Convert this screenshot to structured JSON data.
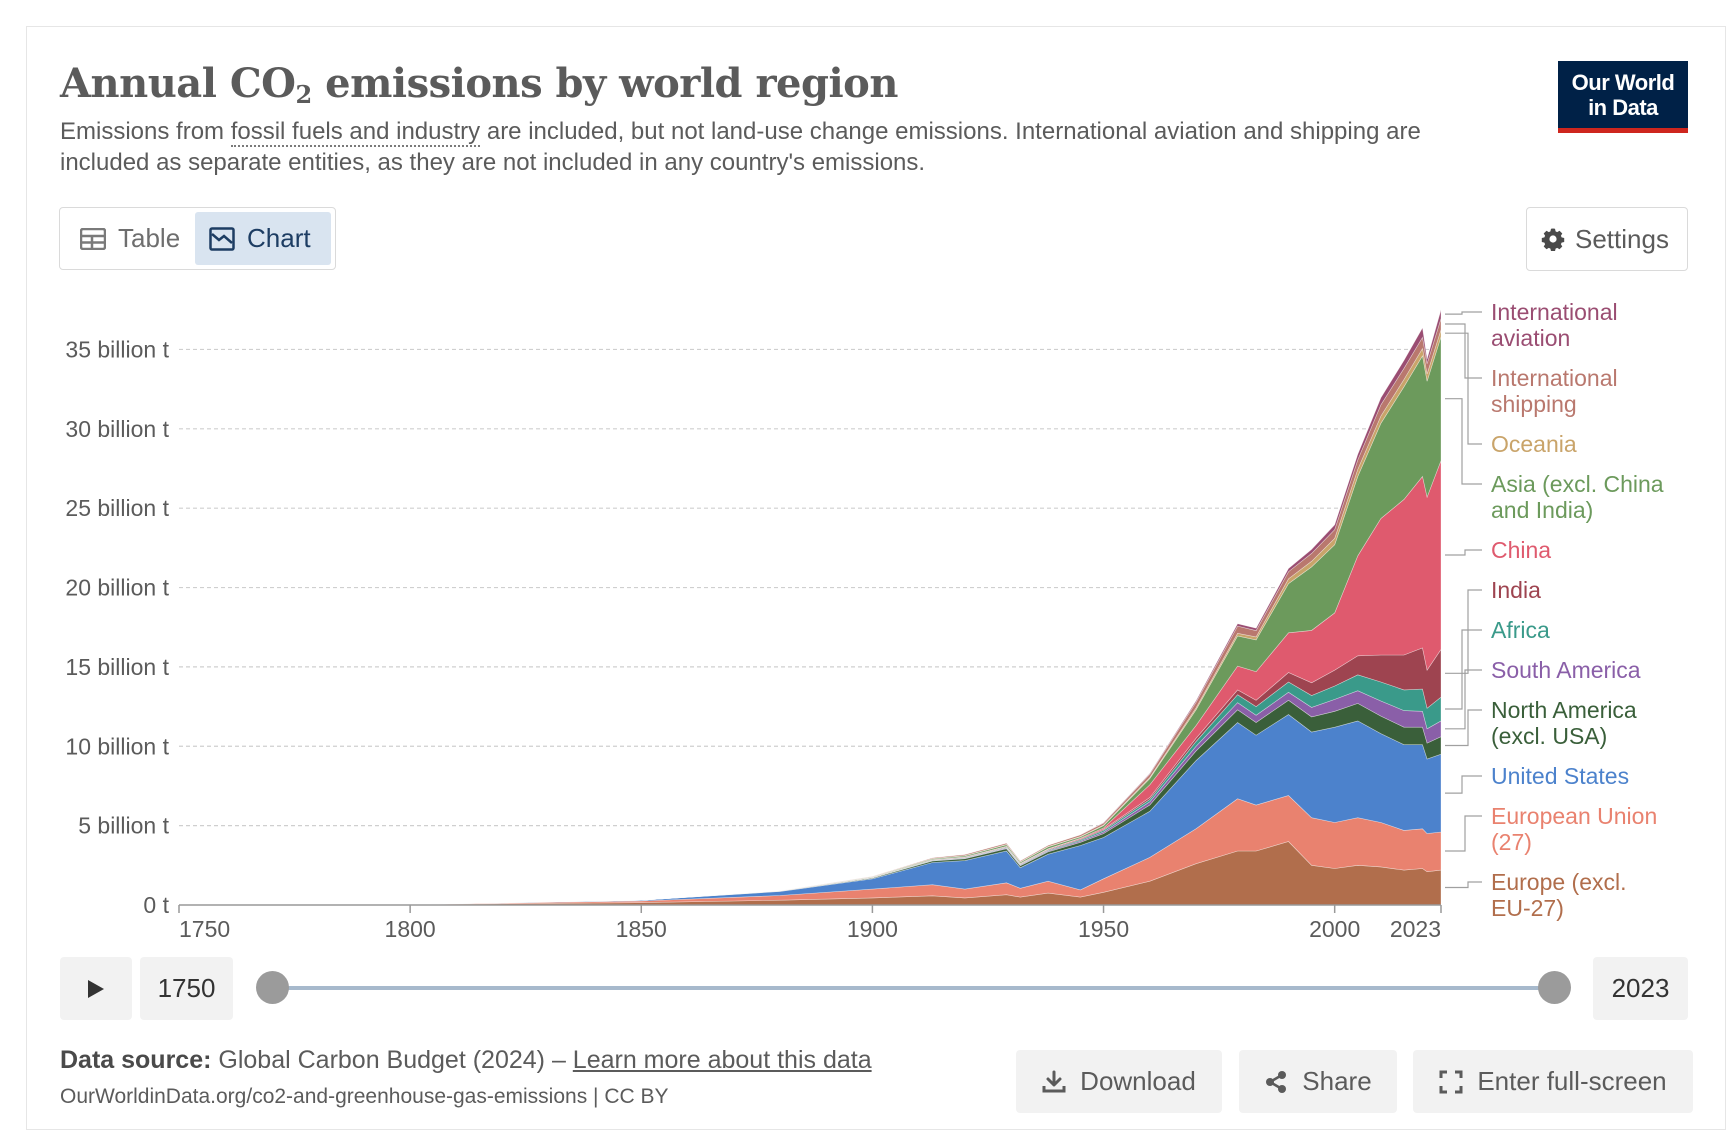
{
  "header": {
    "title_pre": "Annual CO",
    "title_sub": "2",
    "title_post": " emissions by world region",
    "subtitle_pre": "Emissions from ",
    "subtitle_link": "fossil fuels and industry",
    "subtitle_post": " are included, but not land-use change emissions. International aviation and shipping are included as separate entities, as they are not included in any country's emissions.",
    "logo_line1": "Our World",
    "logo_line2": "in Data"
  },
  "controls": {
    "table_label": "Table",
    "chart_label": "Chart",
    "settings_label": "Settings",
    "icons": {
      "table": "table-icon",
      "chart": "chart-icon",
      "settings": "gear-icon"
    }
  },
  "timeline": {
    "start_label": "1750",
    "end_label": "2023",
    "range": [
      1750,
      2023
    ],
    "play_icon": "play-icon"
  },
  "footer": {
    "source_label": "Data source:",
    "source_text": " Global Carbon Budget (2024) – ",
    "learn_more": "Learn more about this data",
    "url_text": "OurWorldinData.org/co2-and-greenhouse-gas-emissions | CC BY",
    "download_label": "Download",
    "share_label": "Share",
    "fullscreen_label": "Enter full-screen"
  },
  "chart_data": {
    "type": "area",
    "stacked": true,
    "grid": "horizontal dashed",
    "legend": "right (inline end labels)",
    "xlim": [
      1750,
      2023
    ],
    "ylim": [
      0,
      37.8
    ],
    "x_ticks": [
      {
        "value": 1750,
        "label": "1750"
      },
      {
        "value": 1800,
        "label": "1800"
      },
      {
        "value": 1850,
        "label": "1850"
      },
      {
        "value": 1900,
        "label": "1900"
      },
      {
        "value": 1950,
        "label": "1950"
      },
      {
        "value": 2000,
        "label": "2000"
      },
      {
        "value": 2023,
        "label": "2023"
      }
    ],
    "y_ticks": [
      {
        "value": 0,
        "label": "0 t"
      },
      {
        "value": 5,
        "label": "5 billion t"
      },
      {
        "value": 10,
        "label": "10 billion t"
      },
      {
        "value": 15,
        "label": "15 billion t"
      },
      {
        "value": 20,
        "label": "20 billion t"
      },
      {
        "value": 25,
        "label": "25 billion t"
      },
      {
        "value": 30,
        "label": "30 billion t"
      },
      {
        "value": 35,
        "label": "35 billion t"
      }
    ],
    "x": [
      1750,
      1800,
      1850,
      1880,
      1900,
      1913,
      1920,
      1929,
      1932,
      1938,
      1945,
      1950,
      1960,
      1970,
      1979,
      1983,
      1990,
      1995,
      2000,
      2005,
      2010,
      2015,
      2019,
      2020,
      2023
    ],
    "series": [
      {
        "name": "Europe (excl. EU-27)",
        "color": "#b16e4c",
        "label_lines": [
          "Europe (excl.",
          "EU-27)"
        ],
        "values": [
          0.01,
          0.03,
          0.15,
          0.3,
          0.45,
          0.58,
          0.45,
          0.65,
          0.5,
          0.75,
          0.5,
          0.8,
          1.5,
          2.6,
          3.4,
          3.4,
          4.0,
          2.5,
          2.3,
          2.5,
          2.4,
          2.2,
          2.3,
          2.1,
          2.2
        ]
      },
      {
        "name": "European Union (27)",
        "color": "#e9826f",
        "label_lines": [
          "European Union",
          "(27)"
        ],
        "values": [
          0.0,
          0.01,
          0.1,
          0.3,
          0.55,
          0.7,
          0.55,
          0.75,
          0.55,
          0.75,
          0.45,
          0.85,
          1.5,
          2.2,
          3.3,
          2.9,
          2.9,
          3.0,
          2.9,
          3.0,
          2.8,
          2.5,
          2.5,
          2.4,
          2.4
        ]
      },
      {
        "name": "United States",
        "color": "#4c82cc",
        "label_lines": [
          "United States"
        ],
        "values": [
          0.0,
          0.0,
          0.05,
          0.25,
          0.65,
          1.4,
          1.8,
          2.0,
          1.3,
          1.7,
          2.8,
          2.6,
          2.9,
          4.3,
          4.8,
          4.4,
          5.1,
          5.4,
          6.0,
          6.1,
          5.6,
          5.4,
          5.3,
          4.7,
          4.9
        ]
      },
      {
        "name": "North America (excl. USA)",
        "color": "#3a5f3a",
        "label_lines": [
          "North America",
          "(excl. USA)"
        ],
        "values": [
          0.0,
          0.0,
          0.0,
          0.02,
          0.05,
          0.1,
          0.12,
          0.15,
          0.12,
          0.15,
          0.2,
          0.25,
          0.4,
          0.6,
          0.8,
          0.8,
          0.9,
          0.95,
          1.0,
          1.1,
          1.1,
          1.1,
          1.1,
          1.0,
          1.1
        ]
      },
      {
        "name": "South America",
        "color": "#8a5fa8",
        "label_lines": [
          "South America"
        ],
        "values": [
          0.0,
          0.0,
          0.0,
          0.0,
          0.01,
          0.02,
          0.03,
          0.05,
          0.05,
          0.06,
          0.08,
          0.1,
          0.2,
          0.3,
          0.45,
          0.45,
          0.5,
          0.6,
          0.75,
          0.8,
          0.95,
          1.05,
          1.0,
          0.9,
          1.0
        ]
      },
      {
        "name": "Africa",
        "color": "#3a9a8a",
        "label_lines": [
          "Africa"
        ],
        "values": [
          0.0,
          0.0,
          0.0,
          0.0,
          0.01,
          0.02,
          0.03,
          0.04,
          0.04,
          0.05,
          0.07,
          0.1,
          0.15,
          0.3,
          0.5,
          0.55,
          0.65,
          0.75,
          0.85,
          1.0,
          1.2,
          1.3,
          1.4,
          1.3,
          1.5
        ]
      },
      {
        "name": "India",
        "color": "#9e4450",
        "label_lines": [
          "India"
        ],
        "values": [
          0.0,
          0.0,
          0.0,
          0.01,
          0.02,
          0.03,
          0.04,
          0.04,
          0.04,
          0.05,
          0.06,
          0.07,
          0.12,
          0.2,
          0.3,
          0.4,
          0.6,
          0.8,
          1.0,
          1.2,
          1.7,
          2.2,
          2.6,
          2.4,
          3.0
        ]
      },
      {
        "name": "China",
        "color": "#df5a6e",
        "label_lines": [
          "China"
        ],
        "values": [
          0.0,
          0.0,
          0.0,
          0.0,
          0.0,
          0.01,
          0.01,
          0.02,
          0.02,
          0.03,
          0.05,
          0.08,
          0.8,
          0.8,
          1.5,
          1.8,
          2.5,
          3.3,
          3.6,
          6.3,
          8.6,
          9.8,
          10.8,
          10.9,
          11.9
        ]
      },
      {
        "name": "Asia (excl. China and India)",
        "color": "#6c9a5c",
        "label_lines": [
          "Asia (excl. China",
          "and India)"
        ],
        "values": [
          0.0,
          0.0,
          0.0,
          0.01,
          0.03,
          0.06,
          0.07,
          0.1,
          0.08,
          0.12,
          0.08,
          0.15,
          0.4,
          1.0,
          1.9,
          2.0,
          3.1,
          4.0,
          4.3,
          5.0,
          6.0,
          7.1,
          7.6,
          7.3,
          7.8
        ]
      },
      {
        "name": "Oceania",
        "color": "#c9a46a",
        "label_lines": [
          "Oceania"
        ],
        "values": [
          0.0,
          0.0,
          0.0,
          0.0,
          0.01,
          0.01,
          0.02,
          0.02,
          0.02,
          0.03,
          0.03,
          0.04,
          0.07,
          0.12,
          0.17,
          0.19,
          0.3,
          0.35,
          0.4,
          0.45,
          0.46,
          0.46,
          0.46,
          0.45,
          0.45
        ]
      },
      {
        "name": "International shipping",
        "color": "#b9786e",
        "label_lines": [
          "International",
          "shipping"
        ],
        "values": [
          0.0,
          0.0,
          0.0,
          0.0,
          0.02,
          0.05,
          0.06,
          0.08,
          0.07,
          0.08,
          0.1,
          0.12,
          0.2,
          0.35,
          0.45,
          0.4,
          0.45,
          0.5,
          0.55,
          0.6,
          0.7,
          0.7,
          0.7,
          0.65,
          0.7
        ]
      },
      {
        "name": "International aviation",
        "color": "#9a4d72",
        "label_lines": [
          "International",
          "aviation"
        ],
        "values": [
          0.0,
          0.0,
          0.0,
          0.0,
          0.0,
          0.0,
          0.0,
          0.0,
          0.0,
          0.0,
          0.01,
          0.02,
          0.05,
          0.1,
          0.15,
          0.15,
          0.2,
          0.25,
          0.3,
          0.35,
          0.45,
          0.5,
          0.6,
          0.3,
          0.55
        ]
      }
    ]
  }
}
